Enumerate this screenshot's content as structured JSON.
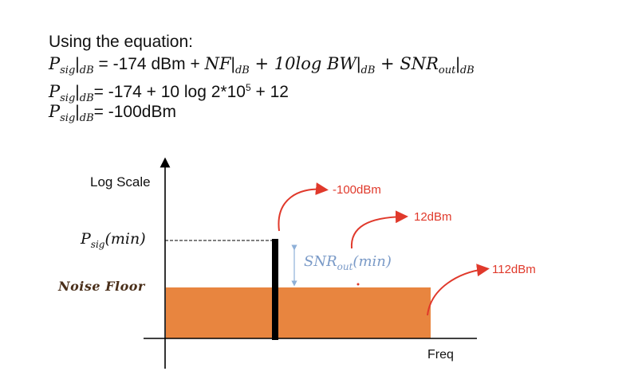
{
  "equation": {
    "intro": "Using the equation:",
    "line1": {
      "p": "P",
      "p_sub": "sig",
      "bar_sub": "dB",
      "mid": " = -174 dBm + ",
      "nf": "NF",
      "nf_sub": "dB",
      "plus1": " + 10",
      "log_bw": "log BW",
      "bw_sub": "dB",
      "plus2": " + ",
      "snr": "SNR",
      "snr_sub": "out",
      "snr_bar_sub": "dB"
    },
    "line2": {
      "p": "P",
      "p_sub": "sig",
      "bar_sub": "dB",
      "text": "= -174 + 10 log 2*10",
      "exp": "5",
      "tail": " + 12"
    },
    "line3": {
      "p": "P",
      "p_sub": "sig",
      "bar_sub": "dB",
      "text": "= -100dBm"
    }
  },
  "diagram": {
    "y_axis_label": "Log Scale",
    "x_axis_label": "Freq",
    "psig_label": {
      "p": "P",
      "sub": "sig",
      "tail": "(min)"
    },
    "noise_floor_label": "Noise Floor",
    "snr_label": {
      "main": "SNR",
      "sub": "out",
      "tail": "(min)"
    },
    "annotations": {
      "signal": "-100dBm",
      "snr": "12dBm",
      "noise": "112dBm"
    },
    "colors": {
      "noise_fill": "#e8853f",
      "signal_bar": "#000000",
      "annotation": "#e0392b",
      "snr_arrow": "#8eb0d8"
    }
  }
}
